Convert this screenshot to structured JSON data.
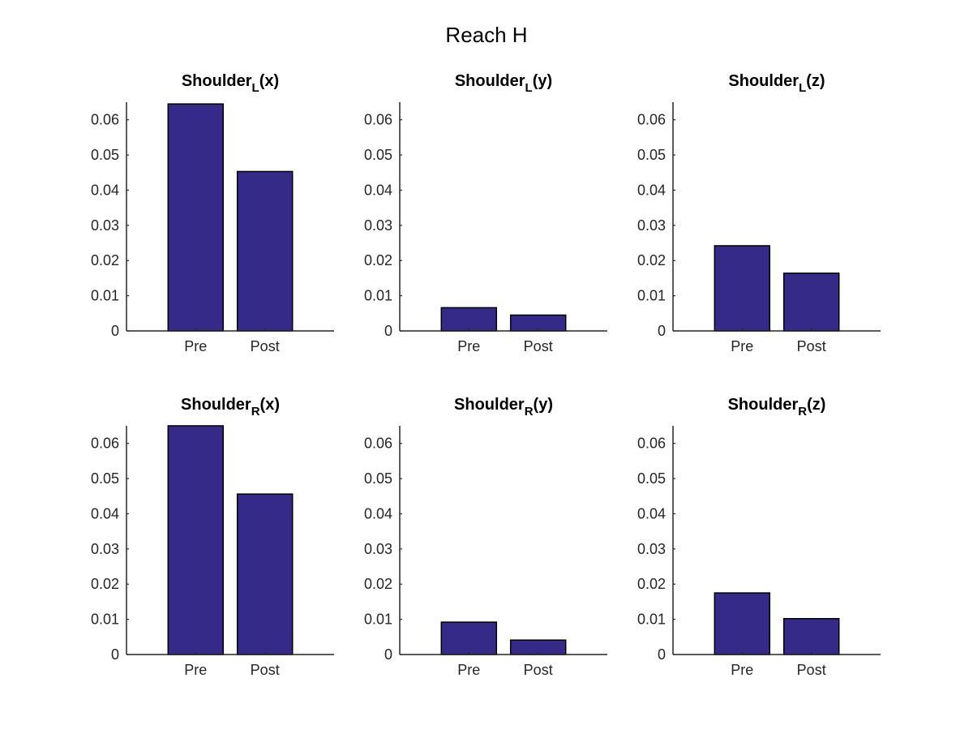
{
  "figure_title": "Reach H",
  "colors": {
    "bar_fill": "#352A87",
    "bar_edge": "#000000",
    "axis": "#262626"
  },
  "chart_data": [
    {
      "type": "bar",
      "title": {
        "base": "Shoulder",
        "sub": "L",
        "suffix": "(x)"
      },
      "categories": [
        "Pre",
        "Post"
      ],
      "values": [
        0.0645,
        0.0453
      ],
      "ylim": [
        0,
        0.065
      ],
      "yticks": [
        "0",
        "0.01",
        "0.02",
        "0.03",
        "0.04",
        "0.05",
        "0.06"
      ],
      "xlabel": "",
      "ylabel": "",
      "grid": false
    },
    {
      "type": "bar",
      "title": {
        "base": "Shoulder",
        "sub": "L",
        "suffix": "(y)"
      },
      "categories": [
        "Pre",
        "Post"
      ],
      "values": [
        0.0066,
        0.0045
      ],
      "ylim": [
        0,
        0.065
      ],
      "yticks": [
        "0",
        "0.01",
        "0.02",
        "0.03",
        "0.04",
        "0.05",
        "0.06"
      ],
      "xlabel": "",
      "ylabel": "",
      "grid": false
    },
    {
      "type": "bar",
      "title": {
        "base": "Shoulder",
        "sub": "L",
        "suffix": "(z)"
      },
      "categories": [
        "Pre",
        "Post"
      ],
      "values": [
        0.0242,
        0.0164
      ],
      "ylim": [
        0,
        0.065
      ],
      "yticks": [
        "0",
        "0.01",
        "0.02",
        "0.03",
        "0.04",
        "0.05",
        "0.06"
      ],
      "xlabel": "",
      "ylabel": "",
      "grid": false
    },
    {
      "type": "bar",
      "title": {
        "base": "Shoulder",
        "sub": "R",
        "suffix": "(x)"
      },
      "categories": [
        "Pre",
        "Post"
      ],
      "values": [
        0.065,
        0.0456
      ],
      "ylim": [
        0,
        0.065
      ],
      "yticks": [
        "0",
        "0.01",
        "0.02",
        "0.03",
        "0.04",
        "0.05",
        "0.06"
      ],
      "xlabel": "",
      "ylabel": "",
      "grid": false
    },
    {
      "type": "bar",
      "title": {
        "base": "Shoulder",
        "sub": "R",
        "suffix": "(y)"
      },
      "categories": [
        "Pre",
        "Post"
      ],
      "values": [
        0.0092,
        0.0041
      ],
      "ylim": [
        0,
        0.065
      ],
      "yticks": [
        "0",
        "0.01",
        "0.02",
        "0.03",
        "0.04",
        "0.05",
        "0.06"
      ],
      "xlabel": "",
      "ylabel": "",
      "grid": false
    },
    {
      "type": "bar",
      "title": {
        "base": "Shoulder",
        "sub": "R",
        "suffix": "(z)"
      },
      "categories": [
        "Pre",
        "Post"
      ],
      "values": [
        0.0175,
        0.0102
      ],
      "ylim": [
        0,
        0.065
      ],
      "yticks": [
        "0",
        "0.01",
        "0.02",
        "0.03",
        "0.04",
        "0.05",
        "0.06"
      ],
      "xlabel": "",
      "ylabel": "",
      "grid": false
    }
  ]
}
